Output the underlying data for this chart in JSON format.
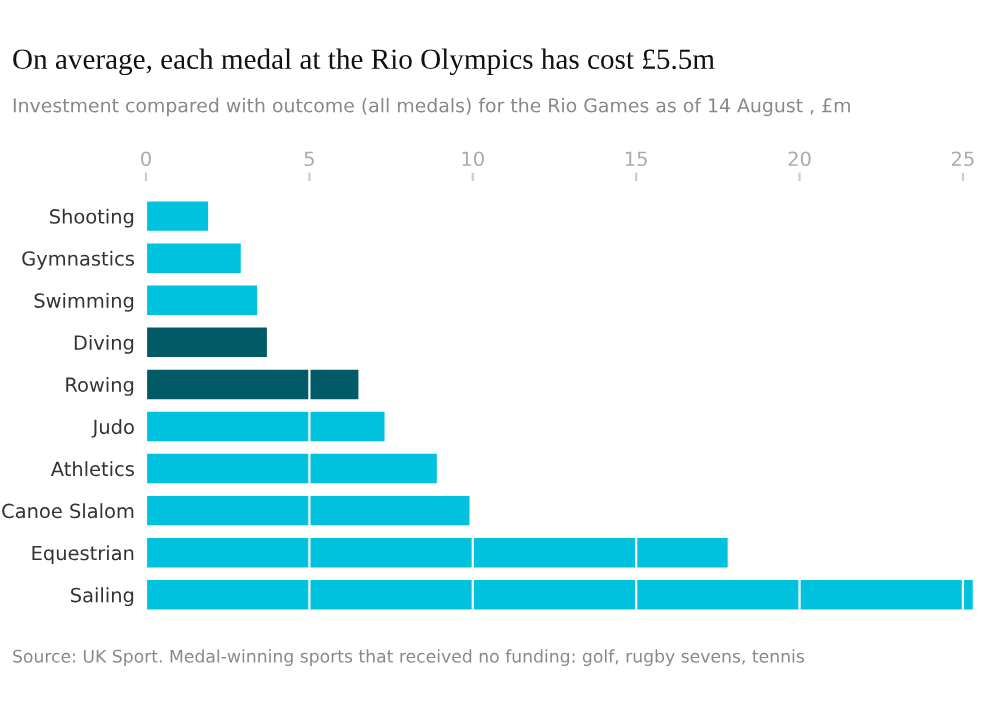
{
  "chart_data": {
    "type": "bar",
    "orientation": "horizontal",
    "title": "On average, each medal at the Rio Olympics has cost £5.5m",
    "subtitle": "Investment compared with outcome (all medals) for the Rio Games as of 14 August , £m",
    "categories": [
      "Shooting",
      "Gymnastics",
      "Swimming",
      "Diving",
      "Rowing",
      "Judo",
      "Athletics",
      "Canoe Slalom",
      "Equestrian",
      "Sailing"
    ],
    "values": [
      1.9,
      2.9,
      3.4,
      3.7,
      6.5,
      7.3,
      8.9,
      9.9,
      17.8,
      25.3
    ],
    "colors": [
      "#00c1de",
      "#00c1de",
      "#00c1de",
      "#005b66",
      "#005b66",
      "#00c1de",
      "#00c1de",
      "#00c1de",
      "#00c1de",
      "#00c1de"
    ],
    "xlim": [
      0,
      25.4
    ],
    "xticks": [
      0,
      5,
      10,
      15,
      20,
      25
    ],
    "grid": "x",
    "annotations": [
      "Source: UK Sport. Medal-winning sports that received no funding: golf, rugby sevens, tennis"
    ]
  }
}
